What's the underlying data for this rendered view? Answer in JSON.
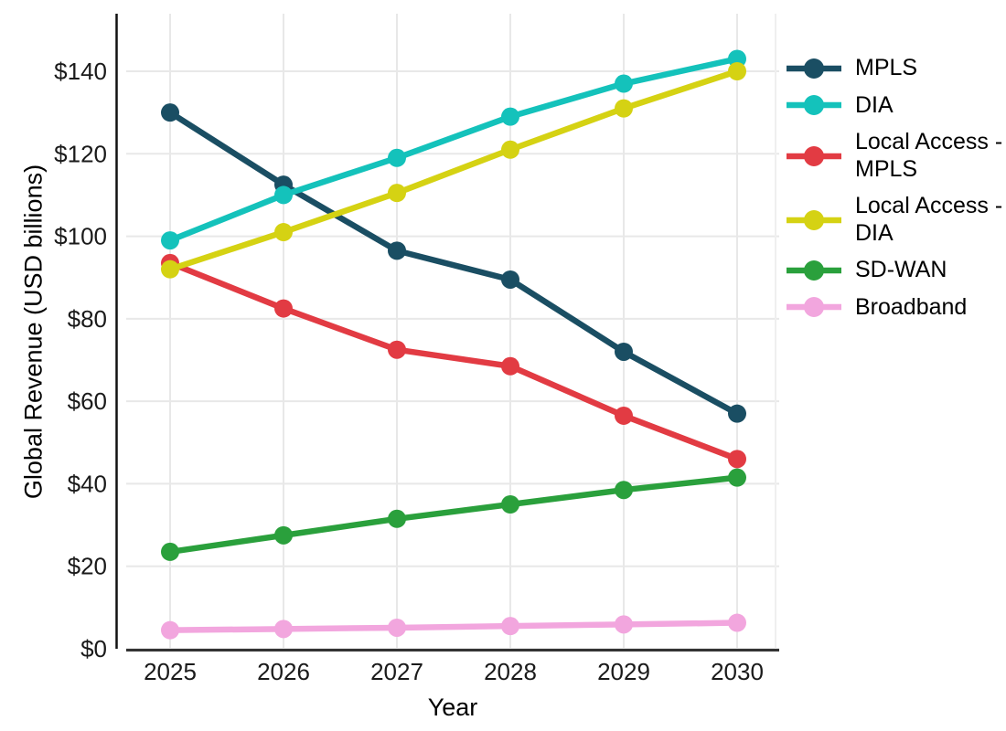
{
  "chart_data": {
    "type": "line",
    "title": "",
    "xlabel": "Year",
    "ylabel": "Global Revenue (USD billions)",
    "x": [
      2025,
      2026,
      2027,
      2028,
      2029,
      2030
    ],
    "x_tick_labels": [
      "2025",
      "2026",
      "2027",
      "2028",
      "2029",
      "2030"
    ],
    "y_ticks": [
      0,
      20,
      40,
      60,
      80,
      100,
      120,
      140
    ],
    "y_tick_labels": [
      "$0",
      "$20",
      "$40",
      "$60",
      "$80",
      "$100",
      "$120",
      "$140"
    ],
    "ylim": [
      0,
      154
    ],
    "xlim": [
      2025,
      2030
    ],
    "grid": "major-only",
    "grid_color": "#e8e8e8",
    "axis_line_color": "#333333",
    "tick_label_color": "#1a1a1a",
    "legend_position": "right",
    "marker": "circle",
    "series": [
      {
        "name": "MPLS",
        "color": "#1a4e63",
        "values": [
          130,
          112.5,
          96.5,
          89.5,
          72,
          57
        ]
      },
      {
        "name": "DIA",
        "color": "#14c2bb",
        "values": [
          99,
          110,
          119,
          129,
          137,
          143
        ]
      },
      {
        "name": "Local Access - MPLS",
        "color": "#e23b43",
        "values": [
          93.5,
          82.5,
          72.5,
          68.5,
          56.5,
          46
        ]
      },
      {
        "name": "Local Access - DIA",
        "color": "#d5d213",
        "values": [
          92,
          101,
          110.5,
          121,
          131,
          140
        ]
      },
      {
        "name": "SD-WAN",
        "color": "#2aa03c",
        "values": [
          23.5,
          27.5,
          31.5,
          35,
          38.5,
          41.5
        ]
      },
      {
        "name": "Broadband",
        "color": "#f2a6de",
        "values": [
          4.5,
          4.8,
          5.1,
          5.5,
          5.9,
          6.3
        ]
      }
    ]
  }
}
